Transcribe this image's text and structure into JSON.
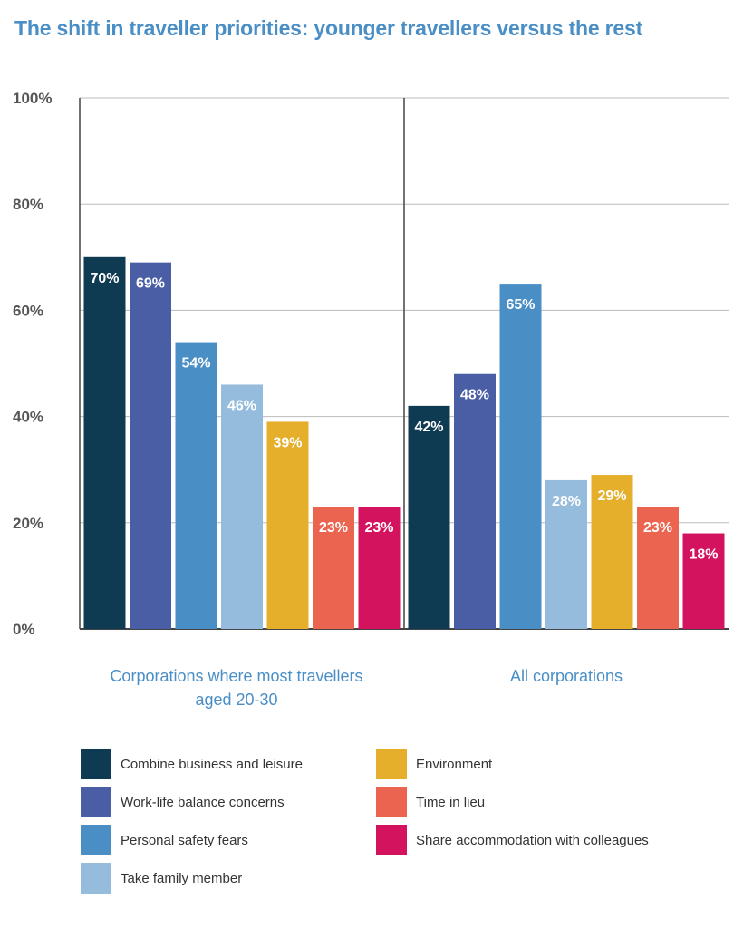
{
  "title": "The shift in traveller priorities: younger travellers versus the rest",
  "chart_data": {
    "type": "bar",
    "ylim": [
      0,
      100
    ],
    "y_ticks": [
      "0%",
      "20%",
      "40%",
      "60%",
      "80%",
      "100%"
    ],
    "y_tick_values": [
      0,
      20,
      40,
      60,
      80,
      100
    ],
    "groups": [
      {
        "label": "Corporations where most travellers aged 20-30",
        "label_lines": [
          "Corporations where most travellers",
          "aged 20-30"
        ]
      },
      {
        "label": "All corporations",
        "label_lines": [
          "All corporations"
        ]
      }
    ],
    "series": [
      {
        "name": "Combine business and leisure",
        "color": "#0e3a52",
        "values": [
          70,
          42
        ],
        "labels": [
          "70%",
          "42%"
        ]
      },
      {
        "name": "Work-life balance concerns",
        "color": "#4a5ea6",
        "values": [
          69,
          48
        ],
        "labels": [
          "69%",
          "48%"
        ]
      },
      {
        "name": "Personal safety fears",
        "color": "#4a8ec6",
        "values": [
          54,
          65
        ],
        "labels": [
          "54%",
          "65%"
        ]
      },
      {
        "name": "Take family member",
        "color": "#96bcdd",
        "values": [
          46,
          28
        ],
        "labels": [
          "46%",
          "28%"
        ]
      },
      {
        "name": "Environment",
        "color": "#e5ae2b",
        "values": [
          39,
          29
        ],
        "labels": [
          "39%",
          "29%"
        ]
      },
      {
        "name": "Time in lieu",
        "color": "#eb6450",
        "values": [
          23,
          23
        ],
        "labels": [
          "23%",
          "23%"
        ]
      },
      {
        "name": "Share accommodation with colleagues",
        "color": "#d4135e",
        "values": [
          23,
          18
        ],
        "labels": [
          "23%",
          "18%"
        ]
      }
    ],
    "grid": true,
    "legend_position": "bottom"
  }
}
